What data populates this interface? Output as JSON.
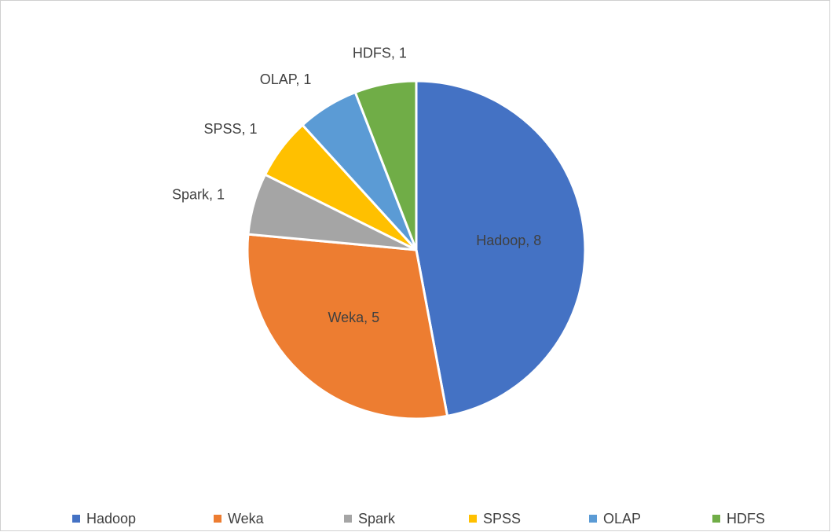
{
  "chart_data": {
    "type": "pie",
    "categories": [
      "Hadoop",
      "Weka",
      "Spark",
      "SPSS",
      "OLAP",
      "HDFS"
    ],
    "values": [
      8,
      5,
      1,
      1,
      1,
      1
    ],
    "value_labels": [
      "Hadoop, 8",
      "Weka, 5",
      "Spark, 1",
      "SPSS, 1",
      "OLAP, 1",
      "HDFS, 1"
    ],
    "colors": [
      "#4472c4",
      "#ed7d31",
      "#a5a5a5",
      "#ffc000",
      "#5b9bd5",
      "#70ad47"
    ],
    "legend": "bottom"
  }
}
